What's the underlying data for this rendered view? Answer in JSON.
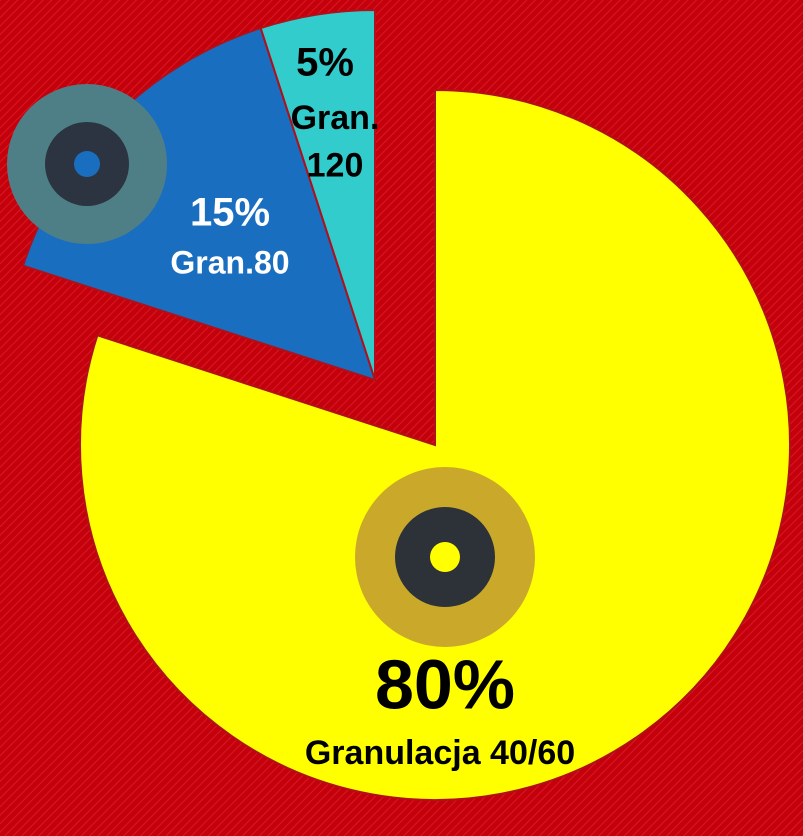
{
  "chart_data": {
    "type": "pie",
    "categories": [
      "Granulacja 40/60",
      "Gran.80",
      "Gran. 120"
    ],
    "values": [
      80,
      15,
      5
    ],
    "value_labels": [
      "80%",
      "15%",
      "5%"
    ],
    "colors": [
      "#ffff00",
      "#1a6ec0",
      "#33cccc"
    ]
  }
}
